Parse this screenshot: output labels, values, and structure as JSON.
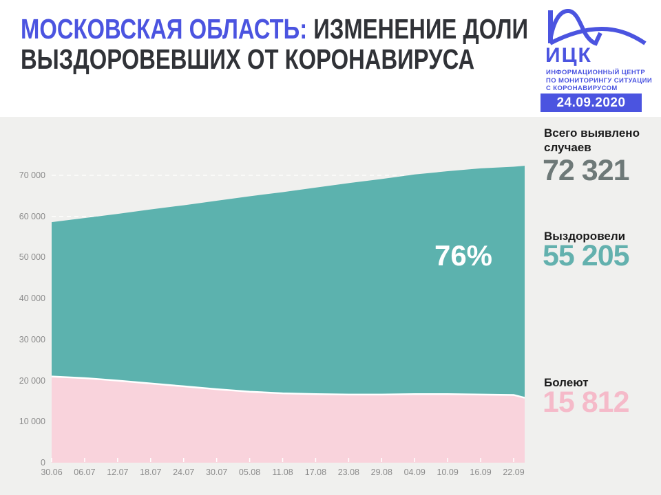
{
  "theme": {
    "accent_blue": "#4b54e0",
    "teal": "#5cb2ae",
    "pink": "#f9d3dc",
    "panel_gray": "#f0f0ee",
    "axis_text_gray": "#8b8b8b",
    "title_dark": "#303237"
  },
  "header": {
    "title_accent": "МОСКОВСКАЯ ОБЛАСТЬ:",
    "title_rest_line1": " ИЗМЕНЕНИЕ ДОЛИ",
    "title_line2": "ВЫЗДОРОВЕВШИХ ОТ КОРОНАВИРУСА",
    "logo": {
      "abbr": "ИЦК",
      "icon": "flatten-the-curve-chart-icon",
      "subtitle_lines": [
        "ИНФОРМАЦИОННЫЙ ЦЕНТР",
        "ПО МОНИТОРИНГУ СИТУАЦИИ",
        "С КОРОНАВИРУСОМ"
      ]
    },
    "date_badge": "24.09.2020"
  },
  "stats": [
    {
      "label_line1": "Всего выявлено",
      "label_line2": "случаев",
      "value": "72 321",
      "color": "#6e7978"
    },
    {
      "label_line1": "Выздоровели",
      "label_line2": "",
      "value": "55 205",
      "color": "#63b1ae"
    },
    {
      "label_line1": "Болеют",
      "label_line2": "",
      "value": "15 812",
      "color": "#f5bac9"
    }
  ],
  "chart_data": {
    "type": "area",
    "stacked": true,
    "title": "Изменение доли выздоровевших от коронавируса, Московская область",
    "x": [
      "30.06",
      "06.07",
      "12.07",
      "18.07",
      "24.07",
      "30.07",
      "05.08",
      "11.08",
      "17.08",
      "23.08",
      "29.08",
      "04.09",
      "10.09",
      "16.09",
      "22.09",
      "24.09"
    ],
    "labeled_ticks": 15,
    "series": [
      {
        "name": "Всего выявлено случаев",
        "role": "total-upper-boundary",
        "color": "#5cb2ae",
        "values": [
          58600,
          59600,
          60600,
          61700,
          62700,
          63800,
          64900,
          65900,
          67000,
          68100,
          69100,
          70200,
          71000,
          71700,
          72100,
          72321
        ]
      },
      {
        "name": "Болеют (активные случаи)",
        "role": "active-lower-area",
        "color": "#f9d3dc",
        "values": [
          21000,
          20600,
          20000,
          19300,
          18600,
          17900,
          17300,
          16900,
          16700,
          16600,
          16600,
          16700,
          16700,
          16600,
          16500,
          15812
        ]
      }
    ],
    "annotation": {
      "text": "76%",
      "meaning": "доля выздоровевших"
    },
    "ylim": [
      0,
      73200
    ],
    "yticks": [
      {
        "value": 0,
        "label": "0"
      },
      {
        "value": 10000,
        "label": "10 000"
      },
      {
        "value": 20000,
        "label": "20 000"
      },
      {
        "value": 30000,
        "label": "30 000"
      },
      {
        "value": 40000,
        "label": "40 000"
      },
      {
        "value": 50000,
        "label": "50 000"
      },
      {
        "value": 60000,
        "label": "60 000"
      },
      {
        "value": 70000,
        "label": "70 000"
      }
    ],
    "grid": "dashed-white-horizontal",
    "legend": "none"
  }
}
